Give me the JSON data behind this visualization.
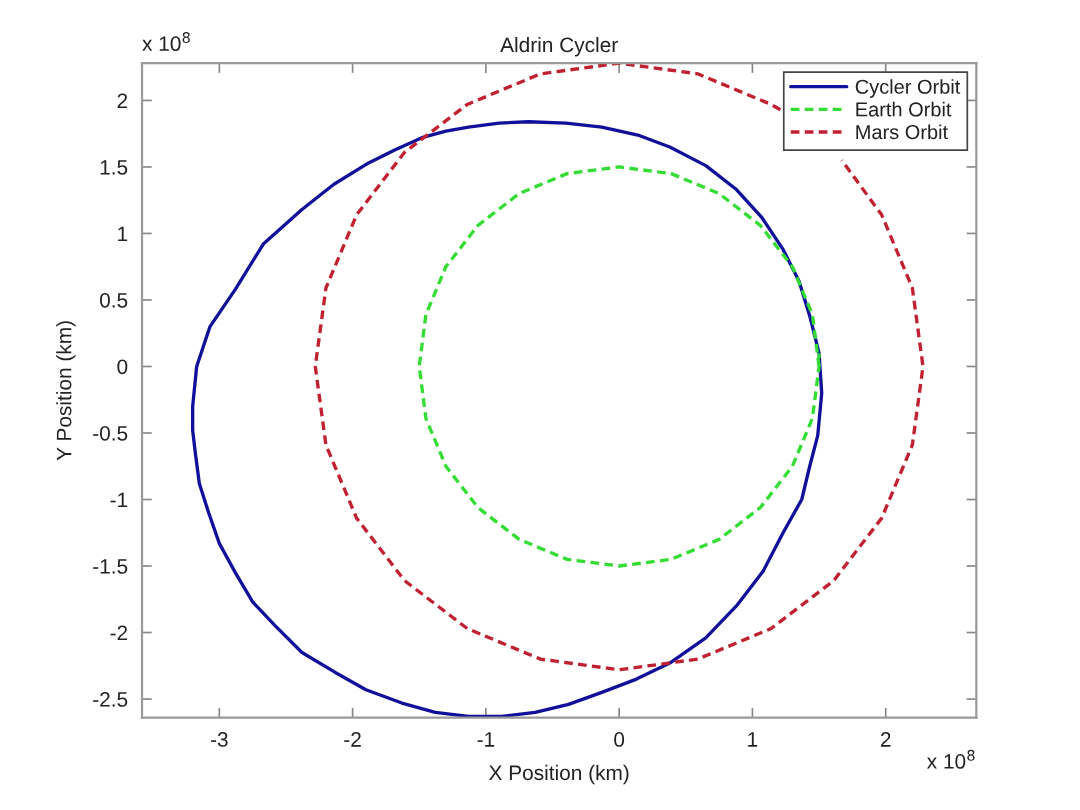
{
  "chart_data": {
    "type": "line",
    "title": "Aldrin Cycler",
    "xlabel": "X Position (km)",
    "ylabel": "Y Position (km)",
    "annotations": [
      "x 10$^{8}$",
      "x 10$^{8}$"
    ],
    "series": [
      {
        "name": "Cycler Orbit",
        "color": "#10109a",
        "line_style": "solid",
        "x": [
          -0.68,
          -0.4,
          -0.13,
          0.14,
          0.38,
          0.65,
          0.88,
          1.07,
          1.23,
          1.35,
          1.43,
          1.5,
          1.52,
          1.49,
          1.43,
          1.37,
          1.23,
          1.08,
          0.88,
          0.65,
          0.38,
          0.13,
          -0.13,
          -0.38,
          -0.63,
          -0.88,
          -1.13,
          -1.38,
          -1.63,
          -1.9,
          -2.13,
          -2.38,
          -2.58,
          -2.75,
          -2.88,
          -3.0,
          -3.08,
          -3.15,
          -3.18,
          -3.2,
          -3.2,
          -3.17,
          -3.07,
          -2.88,
          -2.67,
          -2.38,
          -2.14,
          -1.88,
          -1.68,
          -1.48,
          -1.3,
          -1.13,
          -0.9,
          -0.68,
          -0.4
        ],
        "values": [
          1.84,
          1.83,
          1.8,
          1.74,
          1.65,
          1.51,
          1.33,
          1.12,
          0.88,
          0.64,
          0.38,
          0.1,
          -0.2,
          -0.52,
          -0.75,
          -1.0,
          -1.25,
          -1.54,
          -1.8,
          -2.04,
          -2.23,
          -2.35,
          -2.45,
          -2.54,
          -2.6,
          -2.63,
          -2.63,
          -2.6,
          -2.53,
          -2.43,
          -2.3,
          -2.15,
          -1.95,
          -1.77,
          -1.55,
          -1.33,
          -1.1,
          -0.88,
          -0.65,
          -0.48,
          -0.3,
          0.0,
          0.3,
          0.58,
          0.92,
          1.18,
          1.37,
          1.53,
          1.63,
          1.72,
          1.77,
          1.8,
          1.83,
          1.84,
          1.83
        ]
      },
      {
        "name": "Earth Orbit",
        "color": "#33dd33",
        "line_style": "dashed",
        "x": [
          1.5,
          1.45,
          1.3,
          1.06,
          0.75,
          0.39,
          0,
          -0.39,
          -0.75,
          -1.06,
          -1.3,
          -1.45,
          -1.5,
          -1.45,
          -1.3,
          -1.06,
          -0.75,
          -0.39,
          0,
          0.39,
          0.75,
          1.06,
          1.3,
          1.45,
          1.5,
          1.5
        ],
        "values": [
          0,
          0.39,
          0.75,
          1.06,
          1.3,
          1.45,
          1.5,
          1.45,
          1.3,
          1.06,
          0.75,
          0.39,
          0,
          -0.39,
          -0.75,
          -1.06,
          -1.3,
          -1.45,
          -1.5,
          -1.45,
          -1.3,
          -1.06,
          -0.75,
          -0.39,
          0,
          0.1
        ]
      },
      {
        "name": "Mars Orbit",
        "color": "#c02030",
        "line_style": "dashed",
        "x": [
          1.21,
          1.14,
          0.59,
          0,
          -0.59,
          -1.14,
          -1.61,
          -1.97,
          -2.2,
          -2.28,
          -2.2,
          -1.97,
          -1.61,
          -1.14,
          -0.59,
          0,
          0.59,
          1.14,
          1.61,
          1.97,
          2.2,
          2.28,
          2.2,
          1.97,
          1.67
        ],
        "values": [
          1.93,
          1.97,
          2.2,
          2.28,
          2.2,
          1.97,
          1.61,
          1.14,
          0.59,
          0,
          -0.59,
          -1.14,
          -1.61,
          -1.97,
          -2.2,
          -2.28,
          -2.2,
          -1.97,
          -1.61,
          -1.14,
          -0.59,
          0,
          0.59,
          1.14,
          1.55
        ]
      }
    ],
    "xlim": [
      -3.58,
      2.68
    ],
    "ylim": [
      -2.64,
      2.28
    ],
    "xticks": [
      -3,
      -2,
      -1,
      0,
      1,
      2
    ],
    "yticks": [
      -2.5,
      -2,
      -1.5,
      -1,
      -0.5,
      0,
      0.5,
      1,
      1.5,
      2
    ],
    "grid": false,
    "legend": "top right"
  }
}
